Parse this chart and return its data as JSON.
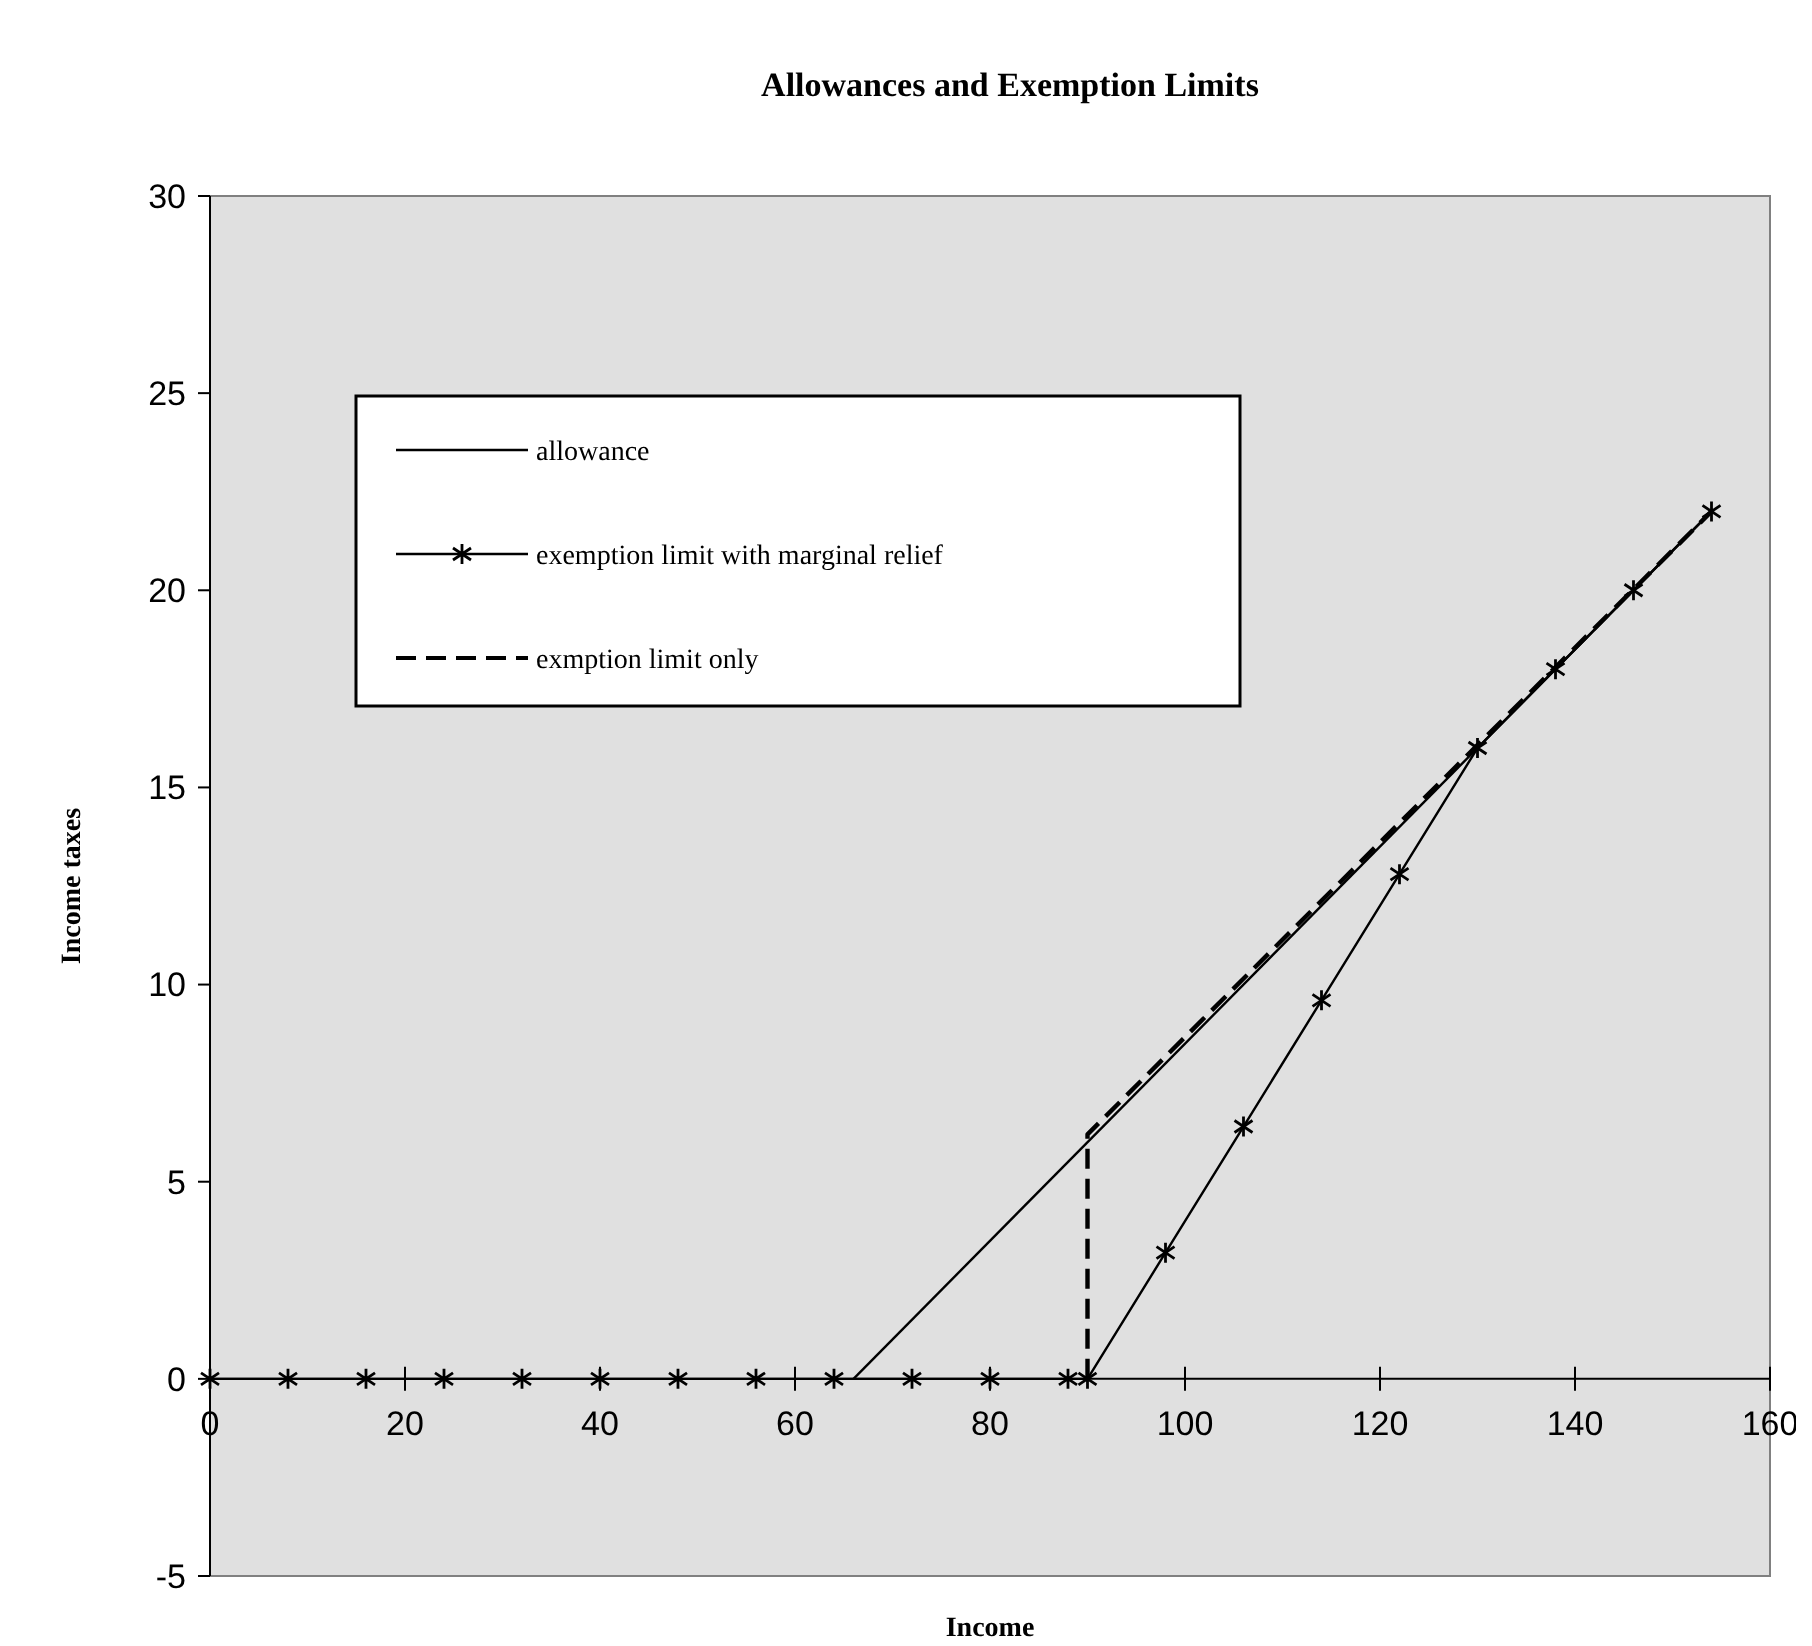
{
  "chart_data": {
    "type": "line",
    "title": "Allowances and Exemption Limits",
    "xlabel": "Income",
    "ylabel": "Income taxes",
    "xlim": [
      0,
      160
    ],
    "xticks": [
      0,
      20,
      40,
      60,
      80,
      100,
      120,
      140,
      160
    ],
    "ylim": [
      -5,
      30
    ],
    "yticks": [
      -5,
      0,
      5,
      10,
      15,
      20,
      25,
      30
    ],
    "grid": false,
    "legend": "top left",
    "series": [
      {
        "name": "allowance",
        "color": "#000000",
        "line_style": "solid",
        "x": [
          66,
          154
        ],
        "values": [
          0,
          22
        ]
      },
      {
        "name": "exemption limit with marginal relief",
        "color": "#000000",
        "line_style": "solid",
        "marker": "cross",
        "x": [
          0,
          8,
          16,
          24,
          32,
          40,
          48,
          56,
          64,
          72,
          80,
          88,
          90,
          98,
          106,
          114,
          122,
          130,
          138,
          146,
          154
        ],
        "values": [
          0,
          0,
          0,
          0,
          0,
          0,
          0,
          0,
          0,
          0,
          0,
          0,
          0,
          3.2,
          6.4,
          9.6,
          12.8,
          16,
          18,
          20,
          22
        ]
      },
      {
        "name": "exmption limit only",
        "color": "#000000",
        "line_style": "dashed",
        "x": [
          90,
          90,
          154
        ],
        "values": [
          0,
          6.2,
          22
        ]
      }
    ]
  }
}
